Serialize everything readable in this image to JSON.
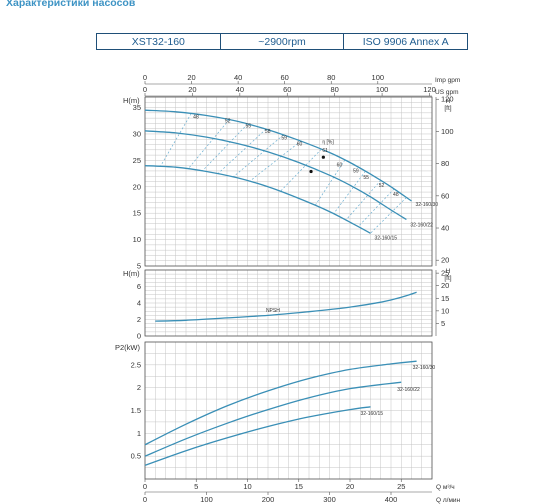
{
  "heading": "Характеристики насосов",
  "info": {
    "model": "XST32-160",
    "speed": "~2900rpm",
    "standard": "ISO 9906   Annex A"
  },
  "colors": {
    "curve": "#3a8fb6",
    "grid": "#c4c4c4",
    "frame": "#555555",
    "dash": "#6aaed0"
  },
  "axes": {
    "imp_gpm_label": "Imp gpm",
    "us_gpm_label": "US gpm",
    "imp_gpm_ticks": [
      "0",
      "20",
      "40",
      "60",
      "80",
      "100"
    ],
    "us_gpm_ticks": [
      "0",
      "20",
      "40",
      "60",
      "80",
      "100",
      "120"
    ],
    "q_m3h_label": "Q  м³/ч",
    "q_lmin_label": "Q  л/мин",
    "q_m3h_ticks": [
      "0",
      "5",
      "10",
      "15",
      "20",
      "25"
    ],
    "q_lmin_ticks": [
      "0",
      "100",
      "200",
      "300",
      "400"
    ],
    "head_label": "H(m)",
    "head_ft_label": "H",
    "ft_unit": "[ft]",
    "npsh_label": "H(m)",
    "power_label": "P2(kW)"
  },
  "chart_data": [
    {
      "type": "line",
      "title": "H(m)",
      "xlabel": "Q м³/ч",
      "ylabel": "H(m)",
      "xlim": [
        0,
        28
      ],
      "ylim": [
        5,
        37
      ],
      "y_ticks": [
        5,
        10,
        15,
        20,
        25,
        30,
        35
      ],
      "y2_label": "H [ft]",
      "y2_ticks": [
        20,
        40,
        60,
        80,
        100,
        120
      ],
      "series": [
        {
          "name": "32-160/30",
          "x": [
            0,
            3,
            6,
            9,
            12,
            15,
            18,
            20,
            22,
            24,
            26
          ],
          "y": [
            34.5,
            34.2,
            33.5,
            32.4,
            30.8,
            28.8,
            26.5,
            24.6,
            22.4,
            20.0,
            17.3
          ]
        },
        {
          "name": "32-160/22",
          "x": [
            0,
            3,
            6,
            9,
            12,
            15,
            18,
            20,
            22,
            24,
            25.5
          ],
          "y": [
            30.6,
            30.2,
            29.4,
            28.2,
            26.6,
            24.6,
            22.2,
            20.3,
            18.1,
            15.6,
            13.8
          ]
        },
        {
          "name": "32-160/15",
          "x": [
            0,
            3,
            6,
            9,
            12,
            15,
            18,
            20,
            22
          ],
          "y": [
            24.0,
            23.7,
            22.9,
            21.7,
            20.0,
            17.8,
            15.3,
            13.3,
            11.2
          ]
        }
      ],
      "efficiency_label": "η [%]",
      "efficiency_values": [
        "48",
        "52",
        "55",
        "58",
        "59",
        "60",
        "61",
        "60",
        "59",
        "55",
        "52",
        "48"
      ]
    },
    {
      "type": "line",
      "title": "NPSH",
      "xlabel": "Q м³/ч",
      "ylabel": "H(m)",
      "xlim": [
        0,
        28
      ],
      "ylim": [
        0,
        8
      ],
      "y_ticks": [
        0,
        2,
        4,
        6
      ],
      "y2_ticks": [
        5,
        10,
        15,
        20,
        25
      ],
      "series": [
        {
          "name": "NPSH",
          "x": [
            1,
            4,
            8,
            12,
            16,
            20,
            23,
            25,
            26.5
          ],
          "y": [
            1.8,
            1.9,
            2.2,
            2.5,
            2.95,
            3.5,
            4.1,
            4.7,
            5.3
          ]
        }
      ]
    },
    {
      "type": "line",
      "title": "P2(kW)",
      "xlabel": "Q м³/ч",
      "ylabel": "P2(kW)",
      "xlim": [
        0,
        28
      ],
      "ylim": [
        0,
        3
      ],
      "y_ticks": [
        0.5,
        1,
        1.5,
        2,
        2.5
      ],
      "series": [
        {
          "name": "32-160/30",
          "x": [
            0,
            4,
            8,
            12,
            16,
            20,
            24,
            26.5
          ],
          "y": [
            0.75,
            1.2,
            1.6,
            1.93,
            2.2,
            2.4,
            2.52,
            2.58
          ]
        },
        {
          "name": "32-160/22",
          "x": [
            0,
            4,
            8,
            12,
            16,
            20,
            25
          ],
          "y": [
            0.5,
            0.88,
            1.22,
            1.52,
            1.78,
            1.98,
            2.12
          ]
        },
        {
          "name": "32-160/15",
          "x": [
            0,
            4,
            8,
            12,
            16,
            20,
            22
          ],
          "y": [
            0.3,
            0.62,
            0.9,
            1.15,
            1.36,
            1.52,
            1.58
          ]
        }
      ]
    }
  ]
}
